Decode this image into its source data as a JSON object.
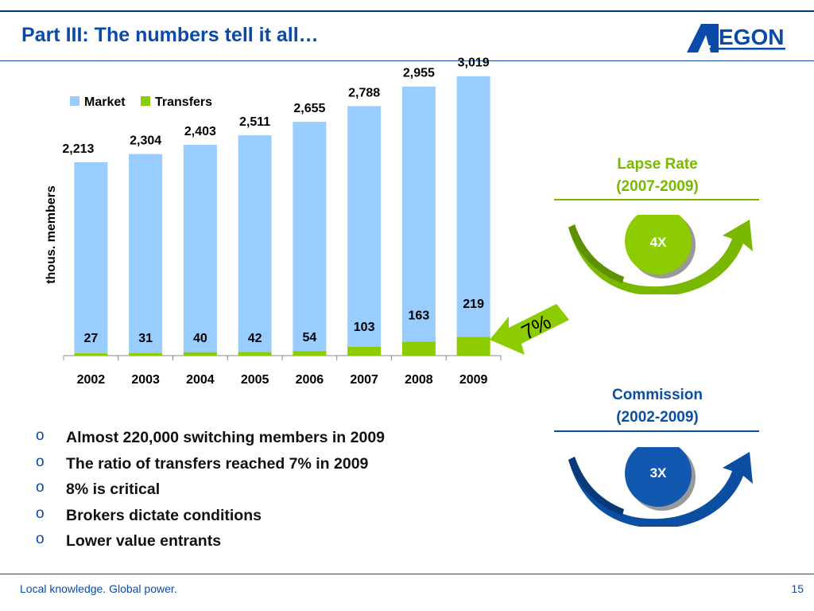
{
  "slide": {
    "title": "Part III: The numbers tell it all…",
    "footer": "Local knowledge. Global power.",
    "page_number": "15",
    "brand_color": "#0a4aa8",
    "logo_text": "AEGON"
  },
  "chart_data": {
    "type": "bar",
    "stacked": true,
    "categories": [
      "2002",
      "2003",
      "2004",
      "2005",
      "2006",
      "2007",
      "2008",
      "2009"
    ],
    "series": [
      {
        "name": "Market",
        "color": "#99ccff",
        "values": [
          2213,
          2304,
          2403,
          2511,
          2655,
          2788,
          2955,
          3019
        ],
        "labels": [
          "2,213",
          "2,304",
          "2,403",
          "2,511",
          "2,655",
          "2,788",
          "2,955",
          "3,019"
        ]
      },
      {
        "name": "Transfers",
        "color": "#8ccc00",
        "values": [
          27,
          31,
          40,
          42,
          54,
          103,
          163,
          219
        ],
        "labels": [
          "27",
          "31",
          "40",
          "42",
          "54",
          "103",
          "163",
          "219"
        ]
      }
    ],
    "ylabel": "thous. members",
    "ylim": [
      0,
      3300
    ],
    "legend_position": "top-left",
    "callout": "7%"
  },
  "panels": {
    "lapse": {
      "title_line1": "Lapse Rate",
      "title_line2": "(2007-2009)",
      "value": "4X",
      "color": "#7ab800",
      "light": "#9bd21a"
    },
    "commission": {
      "title_line1": "Commission",
      "title_line2": "(2002-2009)",
      "value": "3X",
      "color": "#0b4ea2",
      "light": "#2a6fc4"
    }
  },
  "bullets": [
    "Almost 220,000 switching members in 2009",
    "The ratio of transfers reached 7% in 2009",
    "8% is critical",
    "Brokers dictate conditions",
    "Lower value entrants"
  ],
  "bullet_marker": "o"
}
